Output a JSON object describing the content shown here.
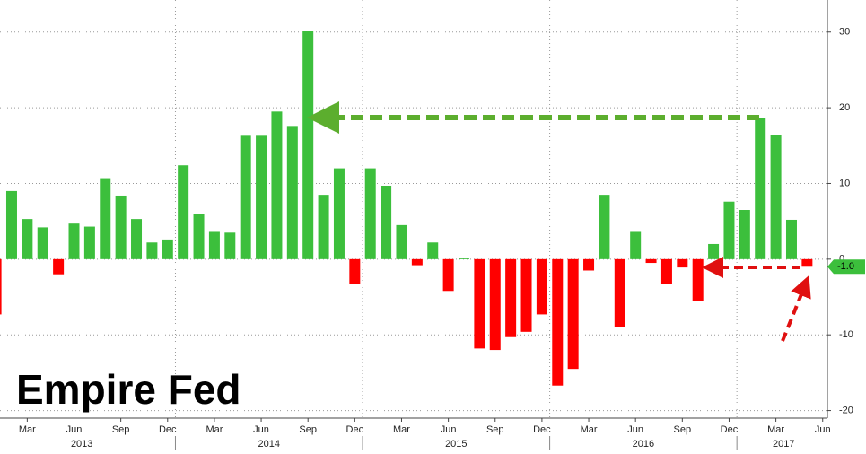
{
  "chart_data": {
    "type": "bar",
    "title": "Empire Fed",
    "categories": [
      null,
      null,
      "Mar",
      null,
      null,
      "Jun",
      null,
      null,
      "Sep",
      null,
      null,
      "Dec",
      null,
      null,
      "Mar",
      null,
      null,
      "Jun",
      null,
      null,
      "Sep",
      null,
      null,
      "Dec",
      null,
      null,
      "Mar",
      null,
      null,
      "Jun",
      null,
      null,
      "Sep",
      null,
      null,
      "Dec",
      null,
      null,
      "Mar",
      null,
      null,
      "Jun",
      null,
      null,
      "Sep",
      null,
      null,
      "Dec",
      null,
      null,
      "Mar",
      null,
      null,
      "Jun"
    ],
    "x_groups": [
      "2013",
      "2014",
      "2015",
      "2016",
      "2017"
    ],
    "values": [
      -7.3,
      9.0,
      5.3,
      4.2,
      -2.0,
      4.7,
      4.3,
      10.7,
      8.4,
      5.3,
      2.2,
      2.6,
      12.4,
      6.0,
      3.6,
      3.5,
      16.3,
      16.3,
      19.5,
      17.6,
      30.2,
      8.5,
      12.0,
      -3.3,
      12.0,
      9.7,
      4.5,
      -0.8,
      2.2,
      -4.2,
      0.2,
      -11.8,
      -12.0,
      -10.3,
      -9.6,
      -7.3,
      -16.7,
      -14.5,
      -1.5,
      8.5,
      -9.0,
      3.6,
      -0.5,
      -3.3,
      -1.1,
      -5.5,
      2.0,
      7.6,
      6.5,
      18.7,
      16.4,
      5.2,
      -1.0,
      null
    ],
    "value_labels": [
      null,
      null,
      null,
      null,
      null,
      null,
      null,
      null,
      null,
      null,
      null,
      null,
      null,
      null,
      null,
      null,
      null,
      null,
      null,
      null,
      null,
      null,
      null,
      null,
      null,
      null,
      null,
      null,
      null,
      null,
      null,
      null,
      null,
      null,
      null,
      null,
      null,
      null,
      null,
      null,
      null,
      null,
      null,
      null,
      null,
      null,
      null,
      null,
      null,
      null,
      null,
      null,
      "-1.0",
      null
    ],
    "positive_color": "#3cbf3c",
    "negative_color": "#ff0000",
    "ylim": [
      -21,
      34
    ],
    "yticks": [
      -20,
      -10,
      0,
      10,
      20,
      30
    ],
    "grid": true
  }
}
